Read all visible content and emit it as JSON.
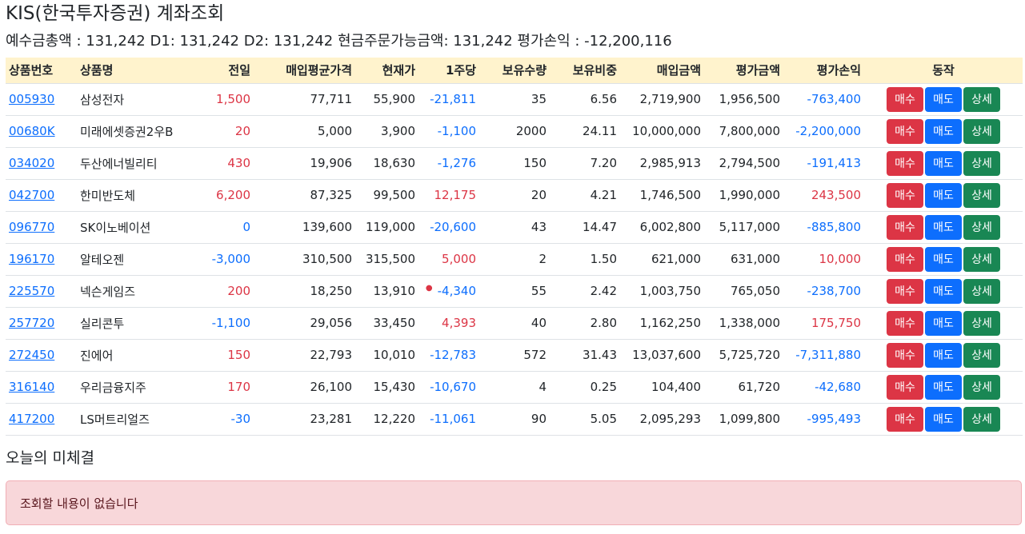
{
  "title": "KIS(한국투자증권) 계좌조회",
  "summary": "예수금총액 : 131,242 D1: 131,242 D2: 131,242 현금주문가능금액: 131,242 평가손익 : -12,200,116",
  "table": {
    "headers": [
      "상품번호",
      "상품명",
      "전일",
      "매입평균가격",
      "현재가",
      "1주당",
      "보유수량",
      "보유비중",
      "매입금액",
      "평가금액",
      "평가손익",
      "동작"
    ],
    "rows": [
      {
        "code": "005930",
        "name": "삼성전자",
        "prev": "1,500",
        "prev_sign": "pos",
        "avg": "77,711",
        "cur": "55,900",
        "per": "-21,811",
        "per_sign": "neg",
        "qty": "35",
        "weight": "6.56",
        "buy": "2,719,900",
        "eval": "1,956,500",
        "pl": "-763,400",
        "pl_sign": "neg"
      },
      {
        "code": "00680K",
        "name": "미래에셋증권2우B",
        "prev": "20",
        "prev_sign": "pos",
        "avg": "5,000",
        "cur": "3,900",
        "per": "-1,100",
        "per_sign": "neg",
        "qty": "2000",
        "weight": "24.11",
        "buy": "10,000,000",
        "eval": "7,800,000",
        "pl": "-2,200,000",
        "pl_sign": "neg"
      },
      {
        "code": "034020",
        "name": "두산에너빌리티",
        "prev": "430",
        "prev_sign": "pos",
        "avg": "19,906",
        "cur": "18,630",
        "per": "-1,276",
        "per_sign": "neg",
        "qty": "150",
        "weight": "7.20",
        "buy": "2,985,913",
        "eval": "2,794,500",
        "pl": "-191,413",
        "pl_sign": "neg"
      },
      {
        "code": "042700",
        "name": "한미반도체",
        "prev": "6,200",
        "prev_sign": "pos",
        "avg": "87,325",
        "cur": "99,500",
        "per": "12,175",
        "per_sign": "pos",
        "qty": "20",
        "weight": "4.21",
        "buy": "1,746,500",
        "eval": "1,990,000",
        "pl": "243,500",
        "pl_sign": "pos"
      },
      {
        "code": "096770",
        "name": "SK이노베이션",
        "prev": "0",
        "prev_sign": "zero",
        "avg": "139,600",
        "cur": "119,000",
        "per": "-20,600",
        "per_sign": "neg",
        "qty": "43",
        "weight": "14.47",
        "buy": "6,002,800",
        "eval": "5,117,000",
        "pl": "-885,800",
        "pl_sign": "neg"
      },
      {
        "code": "196170",
        "name": "알테오젠",
        "prev": "-3,000",
        "prev_sign": "neg",
        "avg": "310,500",
        "cur": "315,500",
        "per": "5,000",
        "per_sign": "pos",
        "qty": "2",
        "weight": "1.50",
        "buy": "621,000",
        "eval": "631,000",
        "pl": "10,000",
        "pl_sign": "pos"
      },
      {
        "code": "225570",
        "name": "넥슨게임즈",
        "prev": "200",
        "prev_sign": "pos",
        "avg": "18,250",
        "cur": "13,910",
        "per": "-4,340",
        "per_sign": "neg",
        "qty": "55",
        "weight": "2.42",
        "buy": "1,003,750",
        "eval": "765,050",
        "pl": "-238,700",
        "pl_sign": "neg",
        "dot": true
      },
      {
        "code": "257720",
        "name": "실리콘투",
        "prev": "-1,100",
        "prev_sign": "neg",
        "avg": "29,056",
        "cur": "33,450",
        "per": "4,393",
        "per_sign": "pos",
        "qty": "40",
        "weight": "2.80",
        "buy": "1,162,250",
        "eval": "1,338,000",
        "pl": "175,750",
        "pl_sign": "pos"
      },
      {
        "code": "272450",
        "name": "진에어",
        "prev": "150",
        "prev_sign": "pos",
        "avg": "22,793",
        "cur": "10,010",
        "per": "-12,783",
        "per_sign": "neg",
        "qty": "572",
        "weight": "31.43",
        "buy": "13,037,600",
        "eval": "5,725,720",
        "pl": "-7,311,880",
        "pl_sign": "neg"
      },
      {
        "code": "316140",
        "name": "우리금융지주",
        "prev": "170",
        "prev_sign": "pos",
        "avg": "26,100",
        "cur": "15,430",
        "per": "-10,670",
        "per_sign": "neg",
        "qty": "4",
        "weight": "0.25",
        "buy": "104,400",
        "eval": "61,720",
        "pl": "-42,680",
        "pl_sign": "neg"
      },
      {
        "code": "417200",
        "name": "LS머트리얼즈",
        "prev": "-30",
        "prev_sign": "neg",
        "avg": "23,281",
        "cur": "12,220",
        "per": "-11,061",
        "per_sign": "neg",
        "qty": "90",
        "weight": "5.05",
        "buy": "2,095,293",
        "eval": "1,099,800",
        "pl": "-995,493",
        "pl_sign": "neg"
      }
    ]
  },
  "buttons": {
    "buy": "매수",
    "sell": "매도",
    "detail": "상세"
  },
  "pending": {
    "title": "오늘의 미체결",
    "empty_message": "조회할 내용이 없습니다"
  },
  "colors": {
    "positive": "#dc3545",
    "negative": "#0d6efd",
    "header_bg": "#fff3cd",
    "alert_bg": "#f8d7da"
  }
}
